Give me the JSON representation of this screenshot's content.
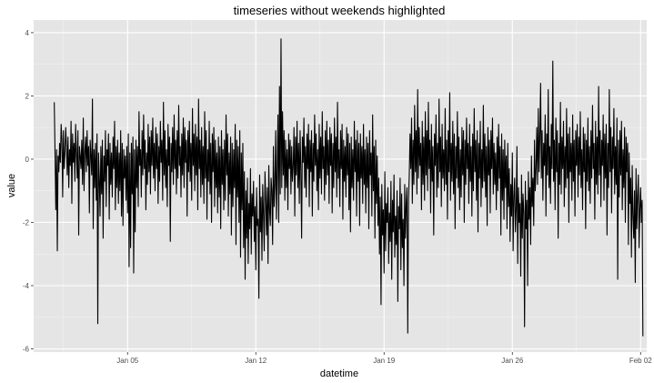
{
  "chart_data": {
    "type": "line",
    "title": "timeseries without weekends highlighted",
    "xlabel": "datetime",
    "ylabel": "value",
    "x_range": [
      "2022-12-30T21:00",
      "2023-02-02T08:00"
    ],
    "ylim": [
      -6.1,
      4.4
    ],
    "x_ticks": [
      {
        "value": "2023-01-05",
        "label": "Jan 05"
      },
      {
        "value": "2023-01-12",
        "label": "Jan 12"
      },
      {
        "value": "2023-01-19",
        "label": "Jan 19"
      },
      {
        "value": "2023-01-26",
        "label": "Jan 26"
      },
      {
        "value": "2023-02-02",
        "label": "Feb 02"
      }
    ],
    "y_ticks": [
      4,
      2,
      0,
      -2,
      -4,
      -6
    ],
    "grid": true,
    "background": "#e5e5e5",
    "line_color": "#000000",
    "series": [
      {
        "sampling": "hourly",
        "start": "2023-01-01T00:00",
        "values": [
          1.8,
          0.2,
          -1.6,
          0.3,
          -2.9,
          0.1,
          -0.4,
          0.5,
          -0.1,
          1.1,
          0.6,
          -1.2,
          0.9,
          -0.3,
          0.2,
          1.0,
          0.4,
          -0.5,
          0.7,
          -0.9,
          0.3,
          -0.2,
          1.2,
          -1.4,
          0.8,
          -0.1,
          0.5,
          -0.7,
          1.1,
          0.2,
          -0.6,
          0.9,
          -2.4,
          0.4,
          0.1,
          -0.3,
          0.6,
          -0.8,
          1.3,
          -1.0,
          0.2,
          0.7,
          -0.4,
          0.9,
          -0.2,
          0.4,
          -1.7,
          0.6,
          0.1,
          -0.5,
          1.9,
          -2.2,
          0.3,
          -0.9,
          0.5,
          -1.3,
          0.8,
          -5.2,
          0.2,
          -0.6,
          -1.8,
          0.4,
          -1.1,
          0.6,
          -2.5,
          0.1,
          -0.7,
          0.9,
          -1.5,
          0.3,
          -0.2,
          0.8,
          -1.9,
          0.5,
          -0.8,
          0.2,
          -1.2,
          0.7,
          -0.3,
          1.2,
          -1.6,
          0.4,
          -0.9,
          0.6,
          -1.4,
          0.2,
          -1.0,
          0.9,
          -1.8,
          0.5,
          -2.1,
          0.3,
          -0.6,
          0.1,
          -1.3,
          0.4,
          -1.7,
          0.8,
          -3.4,
          0.2,
          -2.8,
          0.5,
          -1.1,
          0.7,
          -3.6,
          0.3,
          -2.3,
          0.6,
          -0.9,
          0.4,
          -1.5,
          1.5,
          -0.2,
          0.3,
          -1.2,
          0.9,
          -0.5,
          1.4,
          -0.3,
          0.6,
          -1.6,
          0.2,
          -0.8,
          1.1,
          -0.4,
          0.7,
          -1.1,
          0.9,
          -0.2,
          1.3,
          -0.6,
          0.5,
          -1.0,
          1.0,
          -0.3,
          0.8,
          -1.4,
          0.4,
          -0.7,
          1.2,
          -0.1,
          0.6,
          -1.3,
          1.8,
          -0.5,
          0.9,
          -0.9,
          0.3,
          -1.5,
          1.1,
          -0.2,
          0.7,
          -2.6,
          0.5,
          -0.4,
          1.0,
          -0.8,
          1.4,
          -0.3,
          0.6,
          -1.1,
          0.9,
          -0.6,
          1.7,
          -0.2,
          0.4,
          -1.2,
          0.8,
          -0.5,
          1.3,
          -0.9,
          1.0,
          -0.1,
          0.6,
          -1.8,
          0.9,
          -0.4,
          1.2,
          -0.7,
          0.5,
          -1.3,
          1.6,
          -0.2,
          0.8,
          -1.0,
          1.1,
          -0.5,
          0.7,
          -1.6,
          1.9,
          -0.3,
          0.6,
          -1.2,
          1.0,
          -0.8,
          0.4,
          -1.4,
          1.5,
          -0.6,
          0.9,
          -1.9,
          0.3,
          -0.7,
          1.2,
          -1.1,
          0.5,
          -2.0,
          0.8,
          -0.4,
          1.0,
          -1.5,
          0.6,
          -0.9,
          0.2,
          -1.7,
          0.7,
          -1.2,
          0.4,
          -2.2,
          0.9,
          -0.8,
          0.3,
          -1.6,
          0.6,
          -1.3,
          1.4,
          -0.5,
          0.8,
          -1.8,
          0.2,
          -1.1,
          0.7,
          -2.4,
          0.5,
          -1.5,
          0.3,
          -0.9,
          1.1,
          -2.7,
          0.6,
          -1.2,
          0.4,
          -2.0,
          0.9,
          -3.1,
          0.2,
          -1.6,
          0.5,
          -2.8,
          -0.4,
          -3.8,
          -1.0,
          -2.5,
          -0.6,
          -3.3,
          -1.4,
          -2.2,
          -0.3,
          -3.0,
          -1.1,
          -1.8,
          -0.7,
          -2.6,
          -1.5,
          -3.5,
          -0.9,
          -2.1,
          -1.9,
          -4.4,
          -0.5,
          -2.3,
          -1.2,
          -3.2,
          -0.8,
          -1.7,
          -2.9,
          -0.4,
          -1.3,
          -2.4,
          -0.9,
          -3.3,
          -0.2,
          -1.6,
          -2.1,
          -0.6,
          -1.0,
          -2.7,
          0.4,
          -1.5,
          -0.8,
          0.9,
          -1.9,
          -0.4,
          1.4,
          -2.0,
          2.3,
          -1.1,
          3.8,
          -0.9,
          1.5,
          -0.5,
          0.9,
          -1.3,
          0.6,
          -0.9,
          0.3,
          -1.6,
          0.8,
          -0.3,
          0.6,
          -1.1,
          0.4,
          -0.7,
          -0.2,
          1.0,
          -1.8,
          0.7,
          -0.5,
          1.2,
          -0.9,
          0.5,
          -1.4,
          0.9,
          -0.3,
          -2.5,
          0.7,
          -0.1,
          1.3,
          -0.9,
          0.4,
          -1.2,
          0.8,
          -0.3,
          1.1,
          -1.5,
          0.6,
          -0.4,
          0.9,
          -1.8,
          0.5,
          -0.7,
          1.4,
          -0.2,
          0.8,
          -1.0,
          0.3,
          -1.6,
          1.1,
          -0.6,
          0.7,
          -1.1,
          1.5,
          -0.3,
          0.4,
          -1.3,
          0.9,
          -0.8,
          1.2,
          -0.5,
          0.6,
          -1.4,
          1.0,
          -0.2,
          0.8,
          -1.7,
          0.5,
          -0.9,
          1.3,
          -0.4,
          0.7,
          -1.2,
          1.8,
          -0.6,
          0.3,
          -1.5,
          0.9,
          -0.3,
          1.1,
          -1.9,
          0.6,
          -0.7,
          0.4,
          -1.2,
          1.0,
          -0.5,
          0.8,
          -1.6,
          0.5,
          -2.3,
          0.7,
          -0.9,
          0.3,
          -1.3,
          1.2,
          -0.4,
          0.6,
          -1.8,
          0.9,
          -0.7,
          0.5,
          -2.1,
          0.8,
          -0.6,
          0.4,
          -1.4,
          1.1,
          -0.8,
          0.3,
          -1.7,
          0.7,
          -0.9,
          0.5,
          -2.2,
          0.9,
          -0.5,
          0.2,
          -1.8,
          1.4,
          -1.0,
          0.4,
          -2.5,
          0.6,
          -1.4,
          0.1,
          -2.1,
          -0.6,
          -3.0,
          -1.2,
          -4.6,
          -0.8,
          -2.4,
          -1.6,
          -3.6,
          -0.4,
          -2.9,
          -1.4,
          -2.0,
          -0.9,
          -3.3,
          -1.7,
          -2.6,
          -0.7,
          -3.8,
          -1.3,
          -2.3,
          -0.5,
          -3.1,
          -1.8,
          -2.7,
          -1.0,
          -4.5,
          -1.5,
          -2.2,
          -0.6,
          -3.5,
          -1.1,
          -2.8,
          -1.9,
          -4.0,
          -0.8,
          -2.5,
          -1.4,
          -0.9,
          -5.5,
          -1.3,
          -0.5,
          0.8,
          -0.3,
          1.3,
          -1.4,
          0.6,
          -0.8,
          1.7,
          -0.4,
          0.9,
          -1.1,
          2.2,
          -0.6,
          1.0,
          -0.2,
          0.5,
          -1.6,
          1.2,
          -0.8,
          0.7,
          -1.3,
          1.5,
          -0.5,
          0.9,
          -1.0,
          1.8,
          -0.3,
          0.6,
          -1.7,
          1.1,
          -0.7,
          0.4,
          -2.4,
          0.8,
          -0.2,
          1.4,
          -1.2,
          0.5,
          -0.9,
          1.9,
          -0.4,
          0.7,
          -1.5,
          1.1,
          -0.6,
          0.3,
          -1.0,
          1.6,
          -0.8,
          0.6,
          -1.9,
          0.9,
          -0.4,
          2.1,
          -1.3,
          0.5,
          -0.7,
          1.2,
          -1.1,
          0.8,
          -2.2,
          0.4,
          -0.6,
          1.5,
          -0.9,
          0.7,
          -1.6,
          0.3,
          -1.2,
          1.0,
          -0.5,
          0.9,
          -2.0,
          0.6,
          -0.8,
          1.3,
          -0.3,
          0.5,
          -1.4,
          1.1,
          -0.7,
          0.4,
          -1.8,
          0.8,
          -1.0,
          1.6,
          -0.4,
          0.6,
          -1.3,
          0.9,
          -2.3,
          0.5,
          -0.6,
          1.2,
          -1.5,
          0.3,
          -0.9,
          1.7,
          -0.7,
          0.8,
          -1.2,
          0.4,
          -2.1,
          1.0,
          -0.5,
          0.6,
          -1.7,
          0.9,
          -0.3,
          1.3,
          -1.1,
          0.5,
          -0.8,
          0.2,
          -1.6,
          0.7,
          -1.0,
          1.1,
          -0.6,
          0.4,
          -2.4,
          0.8,
          -1.3,
          0.3,
          -1.9,
          0.6,
          -0.9,
          0.1,
          -2.2,
          0.5,
          -1.5,
          -0.3,
          -2.6,
          -0.8,
          -1.8,
          0.2,
          -2.9,
          -1.2,
          -0.6,
          -2.3,
          -1.6,
          0.4,
          -3.3,
          -0.9,
          -2.0,
          -1.4,
          -3.7,
          -0.5,
          -2.5,
          -1.1,
          -1.7,
          -5.3,
          -0.7,
          -2.2,
          -1.3,
          -4.0,
          -0.4,
          -1.9,
          -0.9,
          -2.7,
          0.1,
          -1.5,
          -0.6,
          -2.1,
          0.6,
          -1.0,
          -0.3,
          1.0,
          -0.8,
          1.6,
          -0.4,
          0.7,
          2.4,
          -0.6,
          0.9,
          -1.3,
          0.5,
          -0.2,
          1.4,
          -1.8,
          0.8,
          -0.5,
          2.2,
          -0.9,
          0.4,
          -1.4,
          1.1,
          -0.3,
          3.1,
          -0.7,
          0.6,
          -1.6,
          1.3,
          -0.4,
          0.9,
          -2.5,
          0.5,
          -0.8,
          1.8,
          -1.1,
          0.7,
          -0.3,
          1.2,
          -1.5,
          0.4,
          -0.9,
          1.6,
          -0.6,
          0.8,
          -2.0,
          1.0,
          -0.4,
          0.5,
          -1.3,
          1.4,
          -0.7,
          0.6,
          -1.8,
          0.9,
          -0.2,
          1.1,
          -1.2,
          0.7,
          -0.5,
          1.5,
          -0.9,
          0.3,
          -1.6,
          1.0,
          -0.4,
          0.8,
          -2.2,
          0.6,
          -0.7,
          1.3,
          -1.0,
          0.4,
          -1.4,
          0.9,
          -0.6,
          1.7,
          -0.3,
          0.5,
          -1.9,
          1.2,
          -0.8,
          0.7,
          -1.1,
          2.3,
          -0.5,
          0.9,
          -1.5,
          0.6,
          -0.2,
          1.4,
          -1.3,
          0.8,
          -0.6,
          1.1,
          -2.4,
          0.5,
          -0.9,
          2.2,
          -0.4,
          1.0,
          -1.7,
          0.7,
          -0.3,
          1.6,
          -1.1,
          0.4,
          -0.8,
          1.3,
          -3.8,
          0.6,
          -1.2,
          0.9,
          -0.5,
          1.2,
          -1.6,
          0.3,
          -0.9,
          1.0,
          -2.0,
          0.7,
          -0.4,
          0.5,
          -2.7,
          0.2,
          -1.4,
          -0.6,
          -3.1,
          -0.2,
          -1.8,
          -2.5,
          -1.0,
          -3.9,
          -0.3,
          -2.2,
          -1.2,
          -0.5,
          -2.8,
          -1.6,
          -0.9,
          -2.0,
          -1.3,
          -5.6
        ]
      }
    ]
  }
}
